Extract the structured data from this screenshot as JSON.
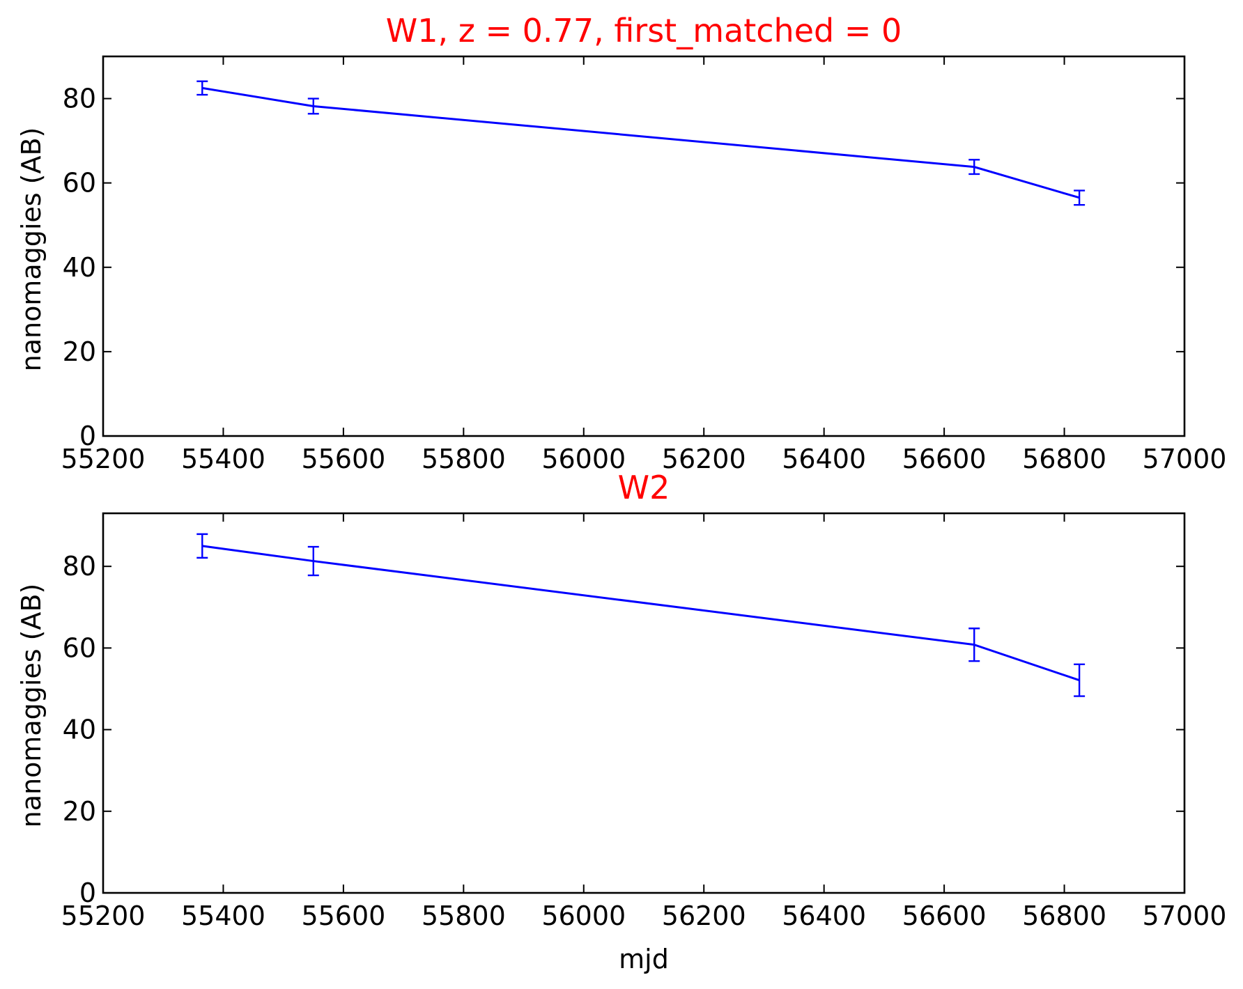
{
  "colors": {
    "series": "#0000ff",
    "title": "#ff0000",
    "axes": "#000000",
    "background": "#ffffff"
  },
  "chart_data": [
    {
      "type": "line",
      "title": "W1, z = 0.77, first_matched = 0",
      "xlabel": "",
      "ylabel": "nanomaggies (AB)",
      "xlim": [
        55200,
        57000
      ],
      "ylim": [
        0,
        90
      ],
      "xticks": [
        "55200",
        "55400",
        "55600",
        "55800",
        "56000",
        "56200",
        "56400",
        "56600",
        "56800",
        "57000"
      ],
      "yticks": [
        "0",
        "20",
        "40",
        "60",
        "80"
      ],
      "grid": false,
      "series": [
        {
          "x": [
            55365,
            55550,
            56650,
            56825
          ],
          "y": [
            82.5,
            78.2,
            63.8,
            56.5
          ],
          "yerr": [
            1.6,
            1.8,
            1.7,
            1.7
          ]
        }
      ]
    },
    {
      "type": "line",
      "title": "W2",
      "xlabel": "mjd",
      "ylabel": "nanomaggies (AB)",
      "xlim": [
        55200,
        57000
      ],
      "ylim": [
        0,
        93
      ],
      "xticks": [
        "55200",
        "55400",
        "55600",
        "55800",
        "56000",
        "56200",
        "56400",
        "56600",
        "56800",
        "57000"
      ],
      "yticks": [
        "0",
        "20",
        "40",
        "60",
        "80"
      ],
      "grid": false,
      "series": [
        {
          "x": [
            55365,
            55550,
            56650,
            56825
          ],
          "y": [
            85.0,
            81.3,
            60.8,
            52.1
          ],
          "yerr": [
            2.9,
            3.5,
            4.0,
            3.9
          ]
        }
      ]
    }
  ]
}
